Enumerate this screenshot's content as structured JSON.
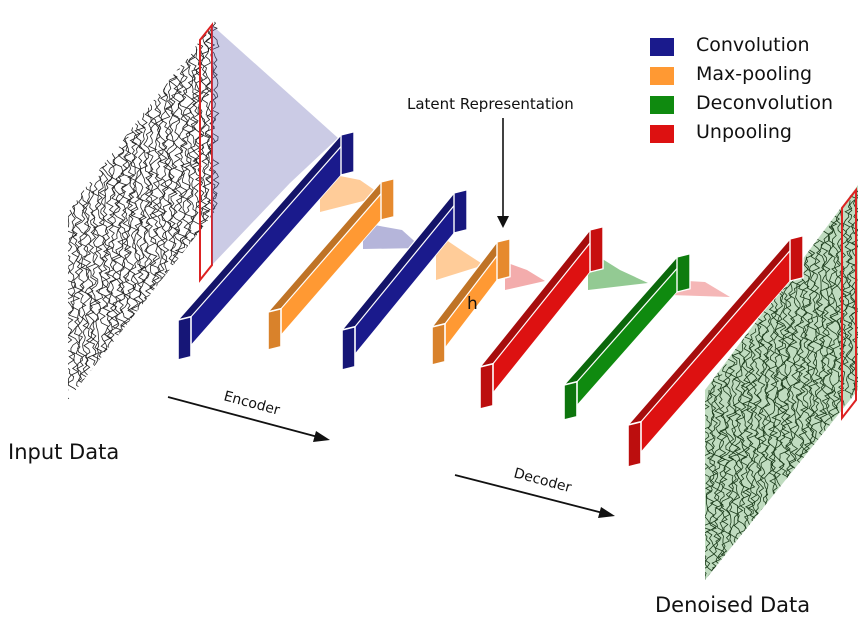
{
  "legend": {
    "items": [
      {
        "label": "Convolution",
        "color": "#1a1a8c"
      },
      {
        "label": "Max-pooling",
        "color": "#ff9933"
      },
      {
        "label": "Deconvolution",
        "color": "#0f8a0f"
      },
      {
        "label": "Unpooling",
        "color": "#dd1111"
      }
    ]
  },
  "labels": {
    "input": "Input Data",
    "output": "Denoised Data",
    "latent": "Latent Representation",
    "encoder": "Encoder",
    "decoder": "Decoder",
    "code": "h"
  },
  "colors": {
    "convolution": "#1a1a8c",
    "maxpool": "#ff9933",
    "deconvolution": "#0f8a0f",
    "unpooling": "#dd1111",
    "input_box": "#dd2222",
    "output_tint": "#2e8b2e"
  },
  "layers": [
    "Convolution",
    "Max-pooling",
    "Convolution",
    "Max-pooling",
    "Unpooling",
    "Deconvolution",
    "Unpooling"
  ]
}
